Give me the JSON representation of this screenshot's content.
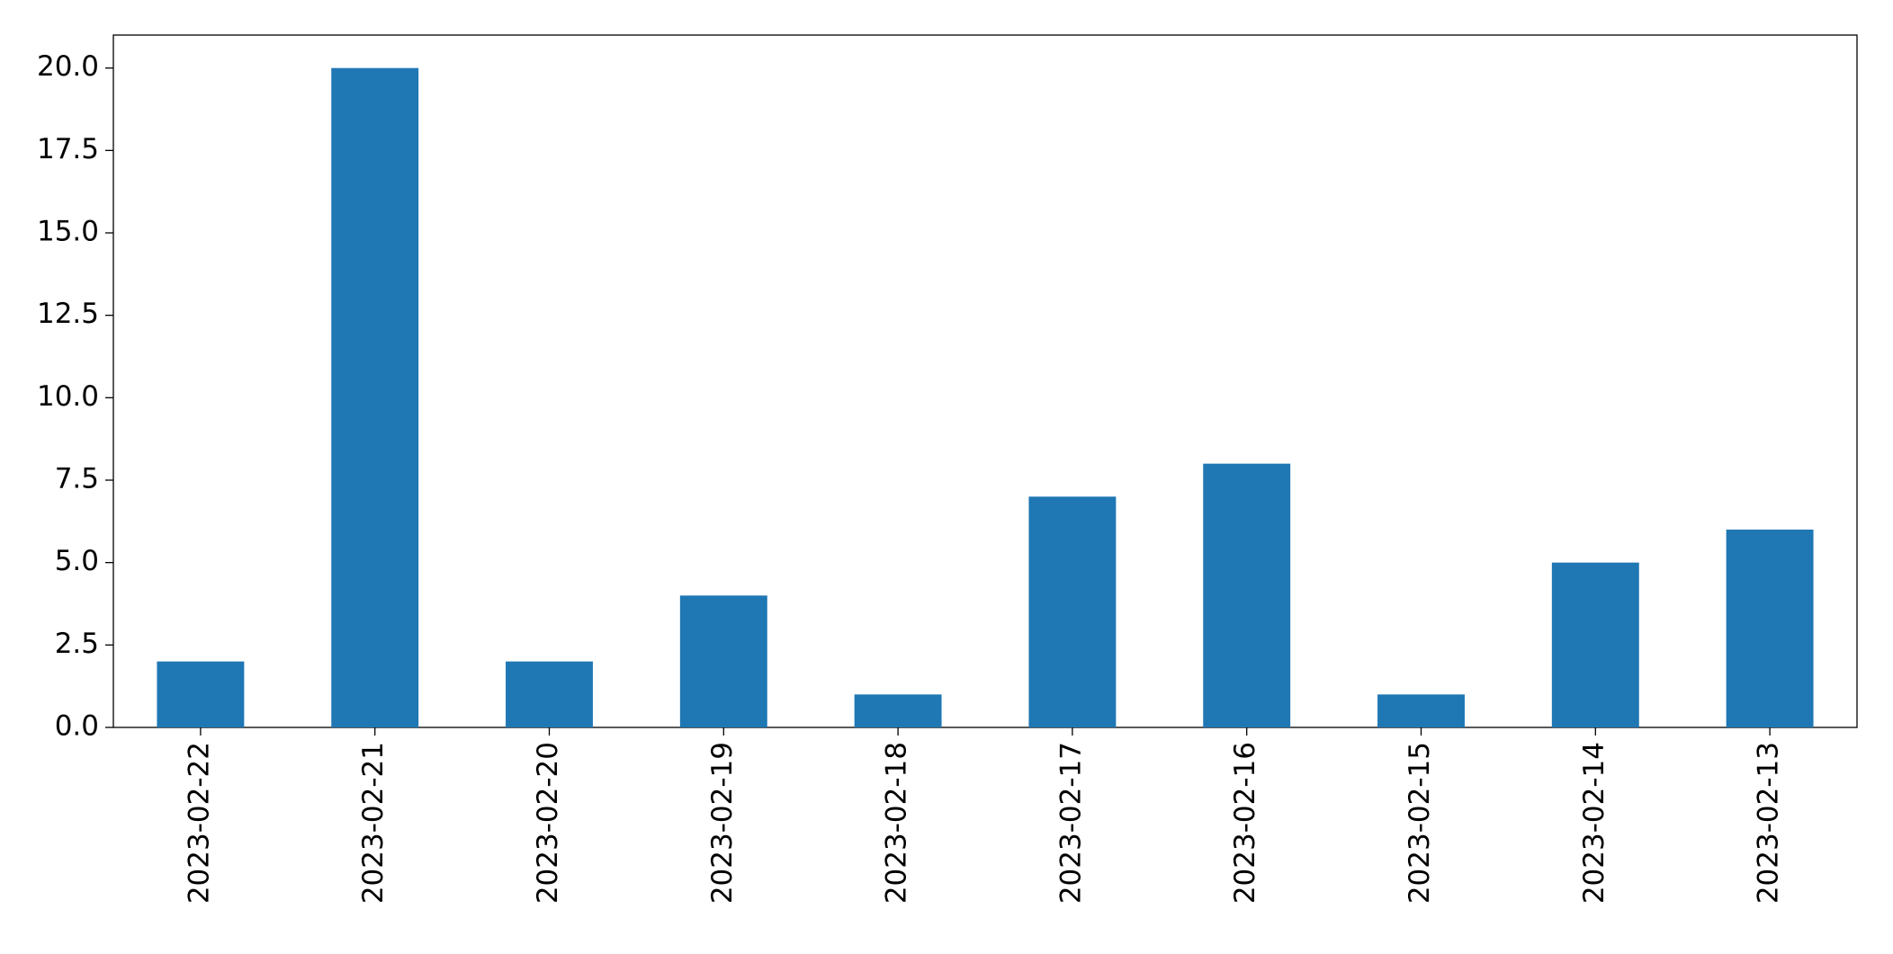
{
  "chart_data": {
    "type": "bar",
    "categories": [
      "2023-02-22",
      "2023-02-21",
      "2023-02-20",
      "2023-02-19",
      "2023-02-18",
      "2023-02-17",
      "2023-02-16",
      "2023-02-15",
      "2023-02-14",
      "2023-02-13"
    ],
    "values": [
      2,
      20,
      2,
      4,
      1,
      7,
      8,
      1,
      5,
      6
    ],
    "color": "#1f77b4",
    "ylim": [
      0,
      21
    ],
    "yticks": [
      {
        "value": 0,
        "label": "0.0"
      },
      {
        "value": 2.5,
        "label": "2.5"
      },
      {
        "value": 5,
        "label": "5.0"
      },
      {
        "value": 7.5,
        "label": "7.5"
      },
      {
        "value": 10,
        "label": "10.0"
      },
      {
        "value": 12.5,
        "label": "12.5"
      },
      {
        "value": 15,
        "label": "15.0"
      },
      {
        "value": 17.5,
        "label": "17.5"
      },
      {
        "value": 20,
        "label": "20.0"
      }
    ],
    "grid": false
  }
}
